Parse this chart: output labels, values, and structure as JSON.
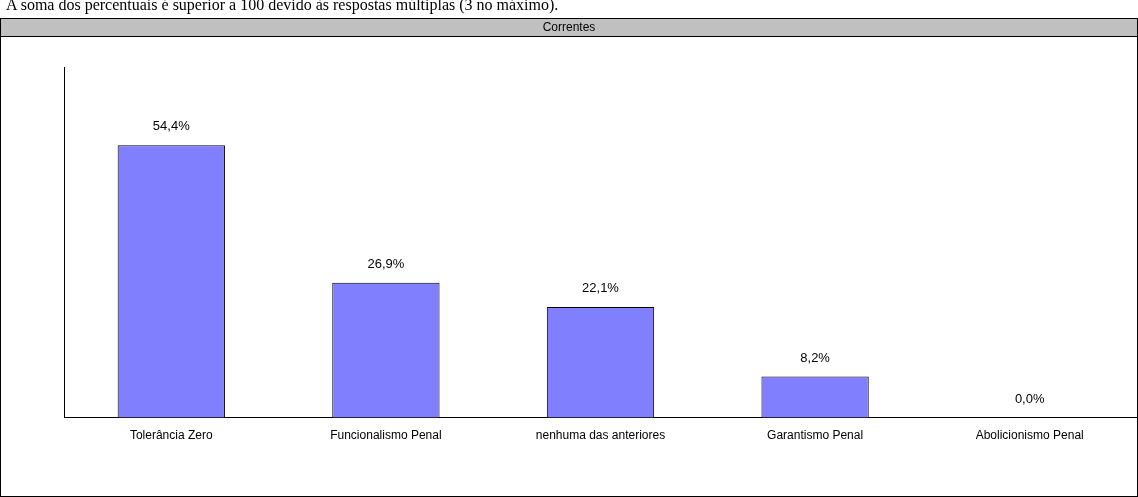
{
  "chart_data": {
    "type": "bar",
    "title": "Correntes",
    "annotations": [
      "A soma dos percentuais é superior a 100 devido às respostas múltiplas (3 no máximo)."
    ],
    "categories": [
      "Tolerância Zero",
      "Funcionalismo Penal",
      "nenhuma das anteriores",
      "Garantismo Penal",
      "Abolicionismo Penal"
    ],
    "values": [
      54.4,
      26.9,
      22.1,
      8.2,
      0.0
    ],
    "value_labels": [
      "54,4%",
      "26,9%",
      "22,1%",
      "8,2%",
      "0,0%"
    ],
    "color": "#8080ff",
    "ylim": [
      0,
      70
    ],
    "tick_labels": "x",
    "grid": false,
    "legend": false
  }
}
